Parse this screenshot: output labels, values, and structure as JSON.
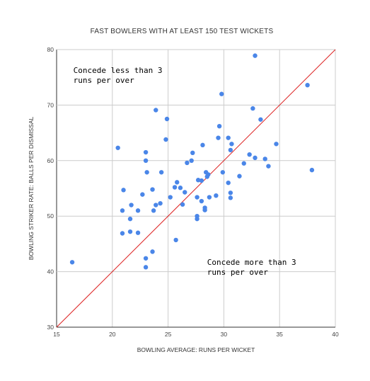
{
  "chart_data": {
    "type": "scatter",
    "title": "FAST BOWLERS WITH AT LEAST 150 TEST WICKETS",
    "xlabel": "BOWLING AVERAGE: RUNS PER WICKET",
    "ylabel": "BOWLING STRIKER RATE: BALLS PER DISMISSAL",
    "xlim": [
      15,
      40
    ],
    "ylim": [
      30,
      80
    ],
    "xticks": [
      15,
      20,
      25,
      30,
      35,
      40
    ],
    "yticks": [
      30,
      40,
      50,
      60,
      70,
      80
    ],
    "grid": true,
    "point_color": "#4a86e8",
    "reference_line": {
      "from": [
        15,
        30
      ],
      "to": [
        40,
        80
      ],
      "color": "#dd2222"
    },
    "annotations": [
      {
        "lines": [
          "Concede less than 3",
          "runs per over"
        ],
        "x": 16.5,
        "y": 75.8
      },
      {
        "lines": [
          "Concede more than 3",
          "runs per over"
        ],
        "x": 28.5,
        "y": 41.2
      }
    ],
    "points": [
      [
        16.4,
        41.7
      ],
      [
        20.5,
        62.3
      ],
      [
        20.9,
        46.9
      ],
      [
        20.9,
        51.0
      ],
      [
        21.0,
        54.7
      ],
      [
        21.6,
        47.2
      ],
      [
        21.6,
        49.5
      ],
      [
        21.7,
        52.0
      ],
      [
        22.3,
        47.0
      ],
      [
        22.3,
        51.0
      ],
      [
        22.7,
        53.9
      ],
      [
        23.0,
        40.8
      ],
      [
        23.0,
        42.4
      ],
      [
        23.0,
        60.0
      ],
      [
        23.0,
        61.5
      ],
      [
        23.1,
        57.9
      ],
      [
        23.6,
        43.6
      ],
      [
        23.6,
        54.8
      ],
      [
        23.7,
        51.0
      ],
      [
        23.9,
        52.0
      ],
      [
        23.9,
        69.1
      ],
      [
        24.3,
        52.3
      ],
      [
        24.4,
        57.9
      ],
      [
        24.8,
        63.8
      ],
      [
        24.9,
        67.5
      ],
      [
        25.2,
        53.4
      ],
      [
        25.6,
        55.2
      ],
      [
        25.7,
        45.7
      ],
      [
        25.8,
        56.1
      ],
      [
        26.1,
        55.1
      ],
      [
        26.3,
        52.1
      ],
      [
        26.5,
        54.3
      ],
      [
        26.7,
        59.6
      ],
      [
        27.1,
        60.0
      ],
      [
        27.2,
        61.4
      ],
      [
        27.6,
        49.5
      ],
      [
        27.6,
        50.0
      ],
      [
        27.6,
        53.4
      ],
      [
        27.7,
        56.5
      ],
      [
        28.0,
        56.4
      ],
      [
        28.0,
        52.7
      ],
      [
        28.1,
        62.8
      ],
      [
        28.3,
        51.1
      ],
      [
        28.3,
        51.5
      ],
      [
        28.4,
        57.9
      ],
      [
        28.5,
        57.1
      ],
      [
        28.6,
        57.5
      ],
      [
        28.7,
        53.4
      ],
      [
        29.3,
        53.7
      ],
      [
        29.5,
        64.1
      ],
      [
        29.6,
        66.2
      ],
      [
        29.8,
        72.0
      ],
      [
        29.9,
        57.9
      ],
      [
        30.4,
        56.0
      ],
      [
        30.4,
        64.1
      ],
      [
        30.6,
        53.3
      ],
      [
        30.6,
        54.2
      ],
      [
        30.6,
        61.9
      ],
      [
        30.7,
        63.0
      ],
      [
        31.4,
        57.2
      ],
      [
        31.8,
        59.5
      ],
      [
        32.3,
        61.1
      ],
      [
        32.6,
        69.4
      ],
      [
        32.8,
        78.9
      ],
      [
        32.8,
        60.5
      ],
      [
        33.3,
        67.4
      ],
      [
        33.7,
        60.3
      ],
      [
        34.0,
        59.0
      ],
      [
        34.7,
        63.0
      ],
      [
        37.5,
        73.6
      ],
      [
        37.9,
        58.3
      ]
    ]
  }
}
